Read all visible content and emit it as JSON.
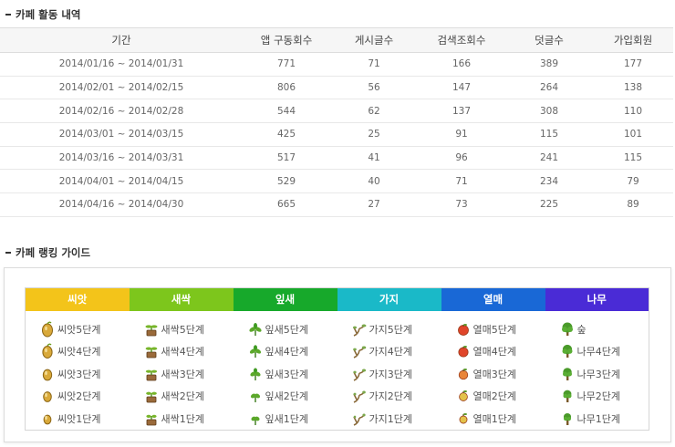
{
  "activity": {
    "title": "카페 활동 내역",
    "headers": [
      "기간",
      "앱 구동회수",
      "게시글수",
      "검색조회수",
      "덧글수",
      "가입회원"
    ],
    "rows": [
      [
        "2014/01/16 ~ 2014/01/31",
        "771",
        "71",
        "166",
        "389",
        "177"
      ],
      [
        "2014/02/01 ~ 2014/02/15",
        "806",
        "56",
        "147",
        "264",
        "138"
      ],
      [
        "2014/02/16 ~ 2014/02/28",
        "544",
        "62",
        "137",
        "308",
        "110"
      ],
      [
        "2014/03/01 ~ 2014/03/15",
        "425",
        "25",
        "91",
        "115",
        "101"
      ],
      [
        "2014/03/16 ~ 2014/03/31",
        "517",
        "41",
        "96",
        "241",
        "115"
      ],
      [
        "2014/04/01 ~ 2014/04/15",
        "529",
        "40",
        "71",
        "234",
        "79"
      ],
      [
        "2014/04/16 ~ 2014/04/30",
        "665",
        "27",
        "73",
        "225",
        "89"
      ]
    ]
  },
  "ranking": {
    "title": "카페 랭킹 가이드",
    "columns": [
      {
        "header": "씨앗",
        "color": "#f3c41a",
        "icon": "seed-icon",
        "stages": [
          "씨앗5단계",
          "씨앗4단계",
          "씨앗3단계",
          "씨앗2단계",
          "씨앗1단계"
        ]
      },
      {
        "header": "새싹",
        "color": "#7dc61c",
        "icon": "sprout-icon",
        "stages": [
          "새싹5단계",
          "새싹4단계",
          "새싹3단계",
          "새싹2단계",
          "새싹1단계"
        ]
      },
      {
        "header": "잎새",
        "color": "#17a92b",
        "icon": "leaf-icon",
        "stages": [
          "잎새5단계",
          "잎새4단계",
          "잎새3단계",
          "잎새2단계",
          "잎새1단계"
        ]
      },
      {
        "header": "가지",
        "color": "#1ab9c8",
        "icon": "branch-icon",
        "stages": [
          "가지5단계",
          "가지4단계",
          "가지3단계",
          "가지2단계",
          "가지1단계"
        ]
      },
      {
        "header": "열매",
        "color": "#1968d6",
        "icon": "fruit-icon",
        "stages": [
          "열매5단계",
          "열매4단계",
          "열매3단계",
          "열매2단계",
          "열매1단계"
        ]
      },
      {
        "header": "나무",
        "color": "#4a2bd6",
        "icon": "tree-icon",
        "stages": [
          "숲",
          "나무4단계",
          "나무3단계",
          "나무2단계",
          "나무1단계"
        ]
      }
    ]
  }
}
